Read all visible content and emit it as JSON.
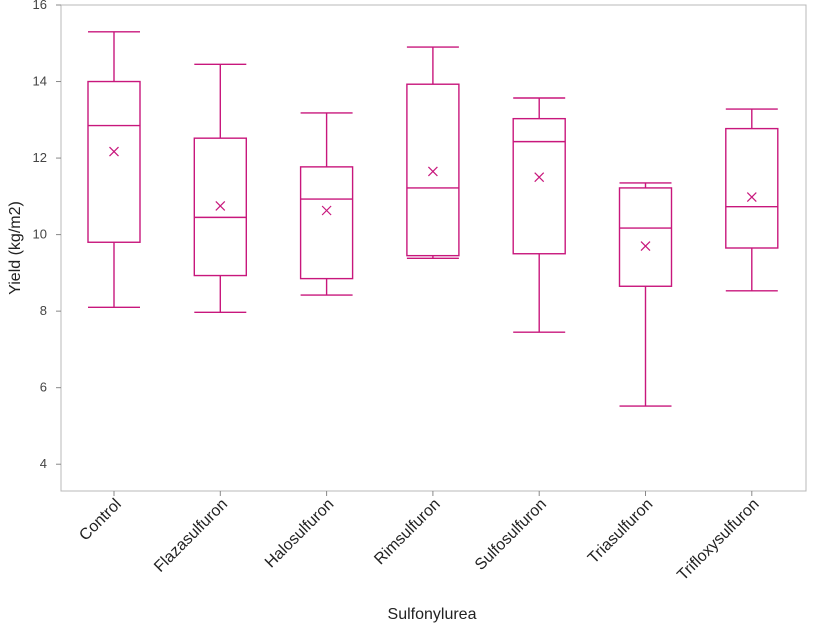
{
  "chart_data": {
    "type": "boxplot",
    "title": "",
    "xlabel": "Sulfonylurea",
    "ylabel": "Yield (kg/m2)",
    "ylim": [
      3.3,
      16
    ],
    "yticks": [
      4,
      6,
      8,
      10,
      12,
      14,
      16
    ],
    "grid": false,
    "categories": [
      "Control",
      "Flazasulfuron",
      "Halosulfuron",
      "Rimsulfuron",
      "Sulfosulfuron",
      "Triasulfuron",
      "Trifloxysulfuron"
    ],
    "boxes": [
      {
        "min": 8.1,
        "q1": 9.8,
        "median": 12.85,
        "q3": 14.0,
        "max": 15.3,
        "mean": 12.17
      },
      {
        "min": 7.97,
        "q1": 8.93,
        "median": 10.45,
        "q3": 12.52,
        "max": 14.45,
        "mean": 10.75
      },
      {
        "min": 8.42,
        "q1": 8.85,
        "median": 10.93,
        "q3": 11.77,
        "max": 13.18,
        "mean": 10.63
      },
      {
        "min": 9.38,
        "q1": 9.45,
        "median": 11.22,
        "q3": 13.93,
        "max": 14.9,
        "mean": 11.65
      },
      {
        "min": 7.45,
        "q1": 9.5,
        "median": 12.43,
        "q3": 13.03,
        "max": 13.57,
        "mean": 11.5
      },
      {
        "min": 5.52,
        "q1": 8.65,
        "median": 10.17,
        "q3": 11.22,
        "max": 11.35,
        "mean": 9.7
      },
      {
        "min": 8.53,
        "q1": 9.65,
        "median": 10.73,
        "q3": 12.77,
        "max": 13.28,
        "mean": 10.98
      }
    ],
    "color": "#c8177c",
    "mean_marker": "x"
  }
}
